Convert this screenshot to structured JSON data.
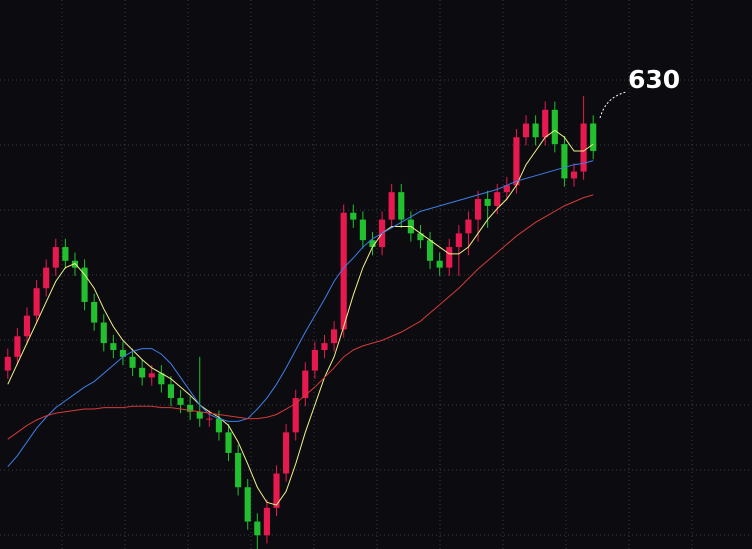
{
  "chart_data": {
    "type": "candlestick",
    "annotation": "630",
    "ylim": [
      300,
      700
    ],
    "up_color": "#e8194f",
    "down_color": "#22c02e",
    "open": [
      430,
      440,
      455,
      470,
      490,
      505,
      520,
      510,
      505,
      480,
      465,
      450,
      445,
      440,
      432,
      425,
      428,
      420,
      410,
      405,
      400,
      395,
      395,
      385,
      370,
      345,
      320,
      310,
      330,
      355,
      385,
      410,
      430,
      445,
      450,
      460,
      545,
      540,
      525,
      520,
      540,
      560,
      540,
      530,
      525,
      510,
      505,
      520,
      530,
      540,
      555,
      550,
      560,
      565,
      600,
      610,
      600,
      620,
      595,
      570,
      575,
      610
    ],
    "high": [
      446,
      461,
      476,
      496,
      511,
      526,
      526,
      516,
      511,
      486,
      471,
      456,
      451,
      446,
      438,
      434,
      434,
      426,
      416,
      411,
      440,
      401,
      401,
      391,
      376,
      351,
      326,
      336,
      361,
      391,
      416,
      436,
      451,
      456,
      466,
      551,
      551,
      546,
      531,
      546,
      566,
      566,
      546,
      536,
      531,
      516,
      526,
      536,
      546,
      561,
      561,
      566,
      571,
      606,
      616,
      616,
      626,
      626,
      601,
      581,
      630,
      616
    ],
    "low": [
      424,
      434,
      449,
      464,
      484,
      499,
      504,
      499,
      474,
      459,
      444,
      439,
      434,
      426,
      419,
      419,
      414,
      404,
      399,
      394,
      389,
      389,
      379,
      364,
      339,
      314,
      300,
      304,
      324,
      349,
      379,
      404,
      424,
      439,
      444,
      454,
      534,
      519,
      514,
      514,
      534,
      534,
      524,
      519,
      504,
      499,
      499,
      499,
      514,
      524,
      534,
      544,
      554,
      559,
      594,
      594,
      594,
      589,
      564,
      564,
      569,
      584
    ],
    "close": [
      440,
      455,
      470,
      490,
      505,
      520,
      510,
      505,
      480,
      465,
      450,
      445,
      440,
      432,
      425,
      428,
      420,
      410,
      405,
      400,
      395,
      395,
      385,
      370,
      345,
      320,
      310,
      330,
      355,
      385,
      410,
      430,
      445,
      450,
      460,
      545,
      540,
      525,
      520,
      540,
      560,
      540,
      530,
      525,
      510,
      505,
      520,
      530,
      540,
      555,
      550,
      560,
      565,
      600,
      610,
      600,
      620,
      595,
      570,
      575,
      610,
      590
    ],
    "moving_averages": [
      {
        "color": "#f2f28a",
        "values": [
          420,
          435,
          450,
          465,
          480,
          495,
          505,
          508,
          500,
          490,
          475,
          462,
          452,
          445,
          438,
          432,
          428,
          424,
          418,
          412,
          405,
          400,
          396,
          390,
          378,
          362,
          345,
          334,
          332,
          342,
          362,
          385,
          405,
          425,
          440,
          462,
          485,
          505,
          520,
          530,
          535,
          535,
          535,
          530,
          525,
          520,
          515,
          515,
          520,
          530,
          540,
          548,
          555,
          565,
          580,
          590,
          600,
          605,
          600,
          590,
          590,
          595
        ]
      },
      {
        "color": "#3d7fe6",
        "values": [
          360,
          368,
          378,
          388,
          396,
          403,
          408,
          413,
          418,
          422,
          428,
          434,
          440,
          444,
          446,
          446,
          442,
          435,
          425,
          415,
          405,
          398,
          395,
          393,
          393,
          395,
          402,
          410,
          420,
          432,
          445,
          458,
          470,
          482,
          495,
          505,
          512,
          520,
          526,
          530,
          534,
          538,
          542,
          546,
          548,
          550,
          552,
          554,
          556,
          558,
          560,
          562,
          565,
          568,
          570,
          572,
          574,
          576,
          578,
          580,
          581,
          583
        ]
      },
      {
        "color": "#d23a3a",
        "values": [
          380,
          385,
          390,
          394,
          397,
          399,
          400,
          401,
          402,
          402,
          403,
          403,
          403,
          404,
          404,
          404,
          403,
          403,
          402,
          401,
          400,
          399,
          398,
          397,
          396,
          395,
          395,
          396,
          398,
          402,
          406,
          412,
          418,
          425,
          432,
          440,
          445,
          448,
          450,
          452,
          455,
          458,
          462,
          466,
          472,
          478,
          484,
          490,
          497,
          504,
          510,
          516,
          522,
          528,
          533,
          538,
          542,
          546,
          550,
          553,
          556,
          558
        ]
      }
    ]
  }
}
